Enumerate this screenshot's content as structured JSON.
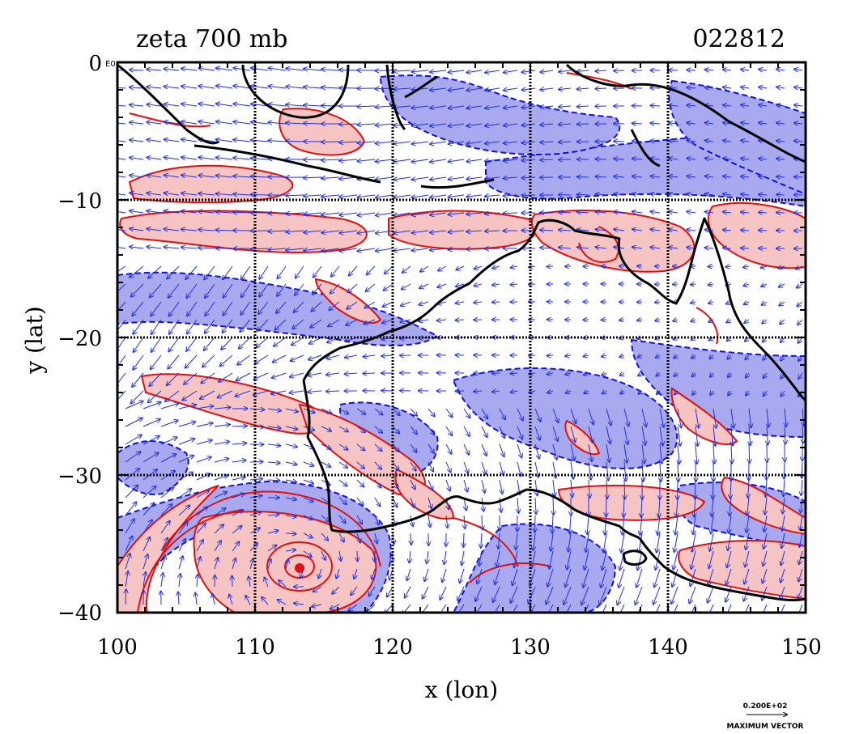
{
  "header": {
    "left_title": "zeta 700 mb",
    "right_title": "022812"
  },
  "axes": {
    "xlabel": "x (lon)",
    "ylabel": "y (lat)",
    "xticks": [
      "100",
      "110",
      "120",
      "130",
      "140",
      "150"
    ],
    "yticks": [
      "0",
      "−10",
      "−20",
      "−30",
      "−40"
    ],
    "origin_note": "E0"
  },
  "legend": {
    "vector_value": "0.200E+02",
    "vector_label": "MAXIMUM VECTOR"
  },
  "map": {
    "lon_range": [
      100,
      150
    ],
    "lat_range": [
      -40,
      0
    ],
    "grid_lon": [
      110,
      120,
      130,
      140
    ],
    "grid_lat": [
      -10,
      -20,
      -30
    ],
    "colors": {
      "positive_fill": "#f7c4c4",
      "positive_line": "#e01010",
      "negative_fill": "#a9a9ef",
      "negative_line": "#1010e0",
      "vector": "#2030e0",
      "coast": "#000000"
    }
  }
}
